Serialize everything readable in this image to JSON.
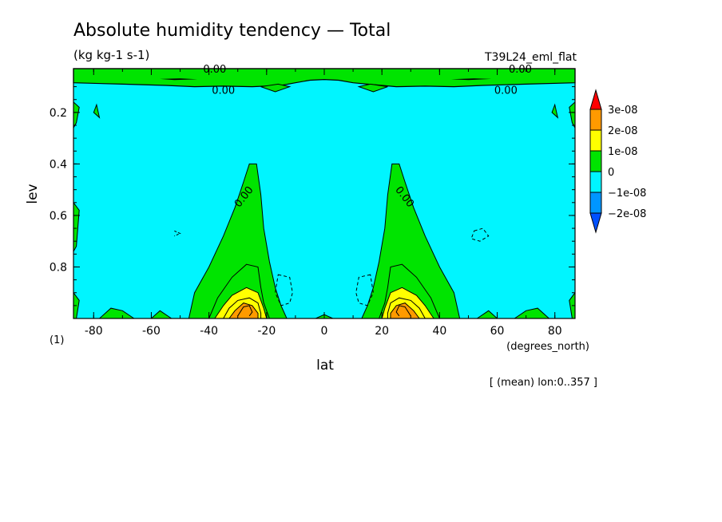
{
  "chart_data": {
    "type": "contour",
    "title": "Absolute humidity tendency — Total",
    "units": "(kg kg-1 s-1)",
    "experiment": "T39L24_eml_flat",
    "xlabel": "lat",
    "xunits": "(degrees_north)",
    "ylabel": "lev",
    "yunits": "(1)",
    "footer": "[ (mean) lon:0..357 ]",
    "xlim": [
      -87,
      87
    ],
    "ylim": [
      1.0,
      0.03
    ],
    "y_reversed": true,
    "xticks": [
      -80,
      -60,
      -40,
      -20,
      0,
      20,
      40,
      60,
      80
    ],
    "yticks": [
      0.2,
      0.4,
      0.6,
      0.8
    ],
    "contour_labels": [
      {
        "text": "0.00",
        "x": -38,
        "y": 0.03
      },
      {
        "text": "0.00",
        "x": 68,
        "y": 0.03
      },
      {
        "text": "0.00",
        "x": -35,
        "y": 0.112
      },
      {
        "text": "0.00",
        "x": 63,
        "y": 0.112
      },
      {
        "text": "0.00",
        "x": -27,
        "y": 0.52
      },
      {
        "text": "0.00",
        "x": 27,
        "y": 0.52
      }
    ],
    "colorbar": {
      "levels": [
        "3e-08",
        "2e-08",
        "1e-08",
        "0",
        "−1e-08",
        "−2e-08"
      ],
      "colors": [
        "#ff0000",
        "#ff9a00",
        "#ffff00",
        "#00e400",
        "#00f5ff",
        "#0096ff",
        "#0050ff"
      ]
    },
    "regions": [
      {
        "band": "top layer",
        "value_range": "0 to 1e-08",
        "lev_range": [
          0.03,
          0.1
        ],
        "lat_range": [
          -87,
          87
        ]
      },
      {
        "band": "southern maximum",
        "peak": "2e-08 to 3e-08",
        "center": [
          -27,
          0.95
        ]
      },
      {
        "band": "northern maximum",
        "peak": "2e-08 to 3e-08",
        "center": [
          27,
          0.95
        ]
      },
      {
        "band": "background",
        "value_range": "-1e-08 to 0"
      }
    ],
    "grid": false,
    "legend": "right"
  }
}
